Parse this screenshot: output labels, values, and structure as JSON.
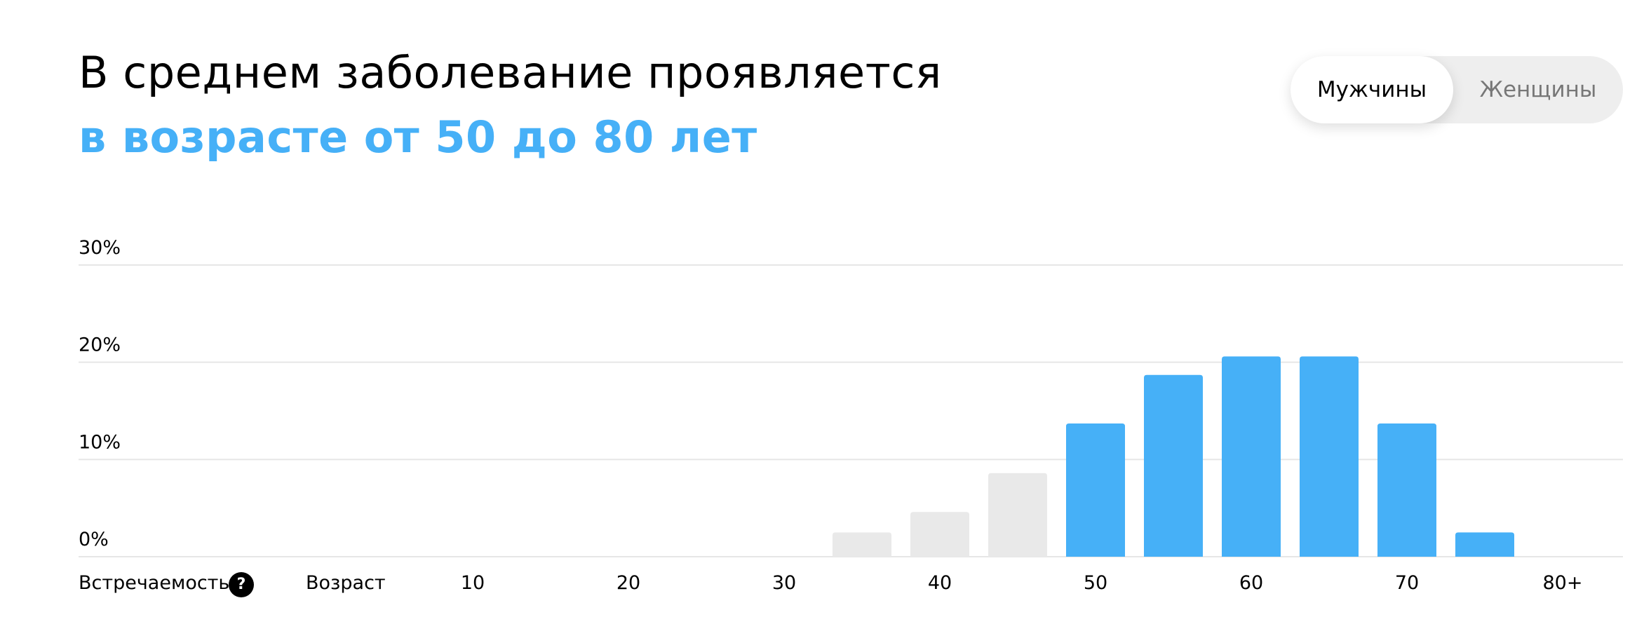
{
  "header": {
    "title_line1": "В среднем заболевание проявляется",
    "title_line2": "в возрасте от 50 до 80 лет"
  },
  "toggle": {
    "options": [
      "Мужчины",
      "Женщины"
    ],
    "selected": "Мужчины"
  },
  "help_icon": "?",
  "colors": {
    "highlight": "#46b0f7",
    "muted": "#e9e9e9",
    "grid": "#e6e6e6",
    "toggle_bg": "#eeeeee"
  },
  "chart_data": {
    "type": "bar",
    "ylabel": "Встречаемость",
    "xlabel": "Возраст",
    "ylim": [
      0,
      30
    ],
    "y_ticks": [
      "0%",
      "10%",
      "20%",
      "30%"
    ],
    "x_ticks": [
      "10",
      "20",
      "30",
      "40",
      "50",
      "60",
      "70",
      "80+"
    ],
    "categories": [
      "35",
      "40",
      "45",
      "50",
      "55",
      "60",
      "65",
      "70",
      "75"
    ],
    "values": [
      2.5,
      4.6,
      8.6,
      13.7,
      18.7,
      20.6,
      20.6,
      13.7,
      2.5
    ],
    "highlighted": [
      false,
      false,
      false,
      true,
      true,
      true,
      true,
      true,
      true
    ],
    "grid": true
  }
}
